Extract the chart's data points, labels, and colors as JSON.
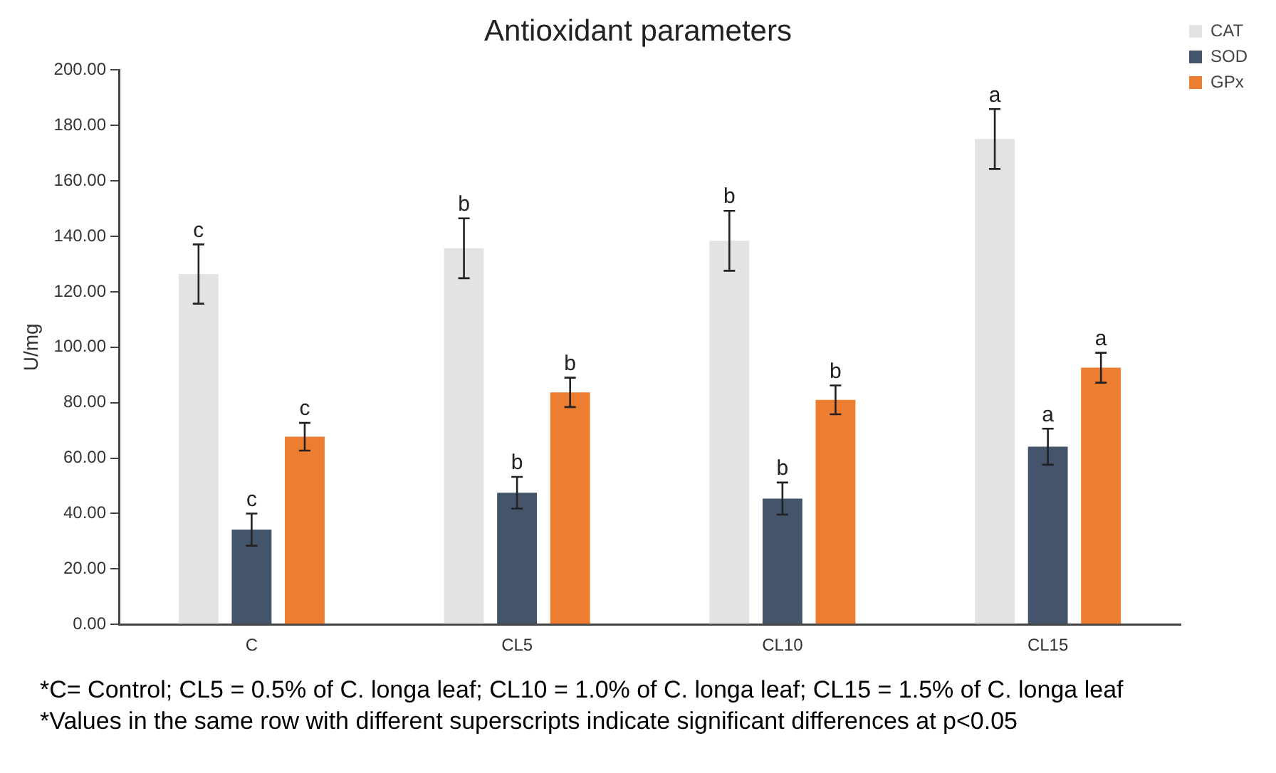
{
  "chart_data": {
    "type": "bar",
    "title": "Antioxidant parameters",
    "ylabel": "U/mg",
    "categories": [
      "C",
      "CL5",
      "CL10",
      "CL15"
    ],
    "series": [
      {
        "name": "CAT",
        "color": "#e3e3e3",
        "values": [
          126.4,
          135.7,
          138.4,
          175.1
        ],
        "errors": [
          10.7,
          10.8,
          10.8,
          10.8
        ],
        "value_labels": [
          "c",
          "b",
          "b",
          "a"
        ]
      },
      {
        "name": "SOD",
        "color": "#44546a",
        "values": [
          34.2,
          47.5,
          45.4,
          64.1
        ],
        "errors": [
          5.8,
          5.7,
          5.8,
          6.5
        ],
        "value_labels": [
          "c",
          "b",
          "b",
          "a"
        ]
      },
      {
        "name": "GPx",
        "color": "#ed7d31",
        "values": [
          67.7,
          83.7,
          81.0,
          92.6
        ],
        "errors": [
          5.0,
          5.3,
          5.2,
          5.4
        ],
        "value_labels": [
          "c",
          "b",
          "b",
          "a"
        ]
      }
    ],
    "ylim": [
      0,
      200
    ],
    "yticks": [
      {
        "value": 0,
        "label": "0.00"
      },
      {
        "value": 20,
        "label": "20.00"
      },
      {
        "value": 40,
        "label": "40.00"
      },
      {
        "value": 60,
        "label": "60.00"
      },
      {
        "value": 80,
        "label": "80.00"
      },
      {
        "value": 100,
        "label": "100.00"
      },
      {
        "value": 120,
        "label": "120.00"
      },
      {
        "value": 140,
        "label": "140.00"
      },
      {
        "value": 160,
        "label": "160.00"
      },
      {
        "value": 180,
        "label": "180.00"
      },
      {
        "value": 200,
        "label": "200.00"
      }
    ],
    "grid": false,
    "legend": "right",
    "annotations": [
      "*C= Control; CL5 = 0.5% of C. longa leaf; CL10 = 1.0% of C. longa leaf; CL15 = 1.5% of C. longa leaf",
      "*Values in the same row with different superscripts indicate significant differences at p<0.05"
    ]
  }
}
